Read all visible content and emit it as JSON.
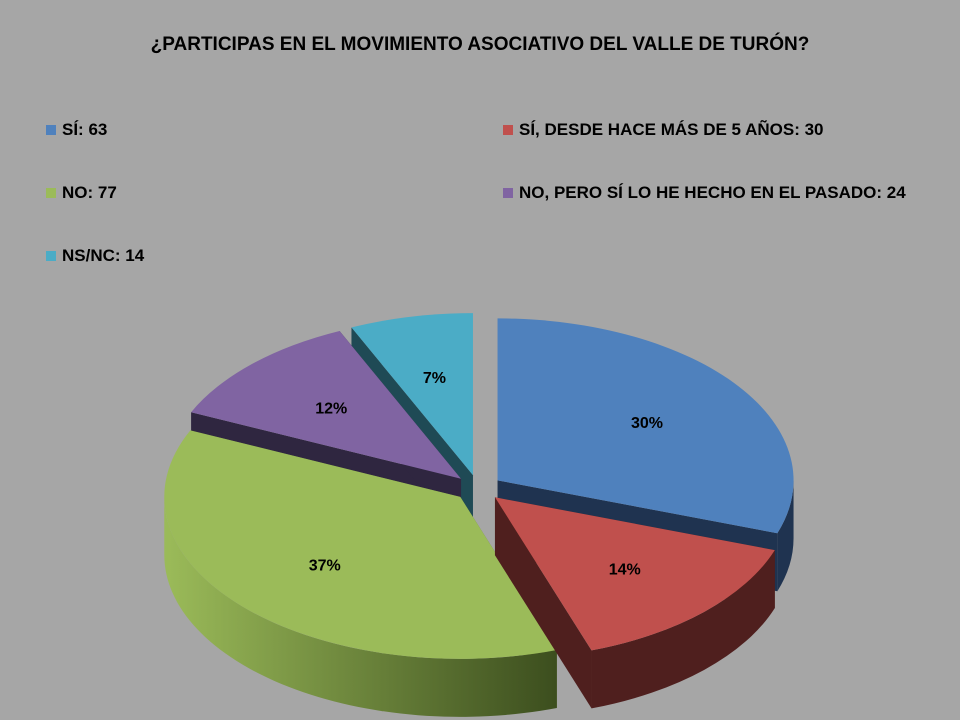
{
  "chart_data": {
    "type": "pie",
    "title": "¿PARTICIPAS EN EL MOVIMIENTO ASOCIATIVO DEL VALLE DE TURÓN?",
    "legend_position": "top",
    "slices": [
      {
        "label": "SÍ",
        "value": 63,
        "percent_label": "30%",
        "legend_text": "SÍ: 63",
        "color": "#4f81bd",
        "side_color": "#1f3350"
      },
      {
        "label": "SÍ, DESDE HACE MÁS DE 5 AÑOS",
        "value": 30,
        "percent_label": "14%",
        "legend_text": "SÍ, DESDE HACE MÁS DE 5 AÑOS: 30",
        "color": "#c0504d",
        "side_color": "#4f1f1e"
      },
      {
        "label": "NO",
        "value": 77,
        "percent_label": "37%",
        "legend_text": "NO: 77",
        "color": "#9bbb59",
        "side_color": "#5a7030"
      },
      {
        "label": "NO, PERO SÍ LO HE HECHO EN EL PASADO",
        "value": 24,
        "percent_label": "12%",
        "legend_text": "NO, PERO SÍ LO HE HECHO EN EL PASADO: 24",
        "color": "#8064a2",
        "side_color": "#2f2640"
      },
      {
        "label": "NS/NC",
        "value": 14,
        "percent_label": "7%",
        "legend_text": "NS/NC: 14",
        "color": "#4bacc6",
        "side_color": "#1f4a55"
      }
    ]
  }
}
